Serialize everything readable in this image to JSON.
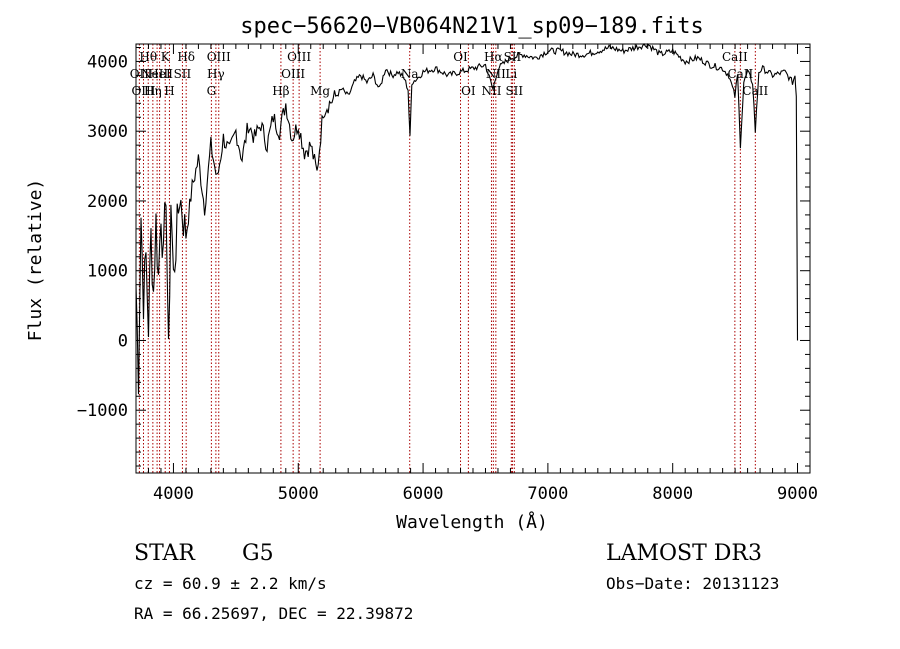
{
  "chart_data": {
    "type": "line",
    "title": "spec−56620−VB064N21V1_sp09−189.fits",
    "xlabel": "Wavelength (Å)",
    "ylabel": "Flux (relative)",
    "xlim": [
      3700,
      9100
    ],
    "ylim": [
      -1900,
      4250
    ],
    "x_ticks": [
      4000,
      5000,
      6000,
      7000,
      8000,
      9000
    ],
    "x_tick_labels": [
      "4000",
      "5000",
      "6000",
      "7000",
      "8000",
      "9000"
    ],
    "y_ticks": [
      -1000,
      0,
      1000,
      2000,
      3000,
      4000
    ],
    "y_tick_labels": [
      "−1000",
      "0",
      "1000",
      "2000",
      "3000",
      "4000"
    ],
    "grid": false,
    "line_color": "#000000",
    "marker_color": "#aa0000",
    "series": [
      {
        "name": "spectrum",
        "x": [
          3700,
          3720,
          3740,
          3760,
          3780,
          3800,
          3820,
          3840,
          3860,
          3880,
          3900,
          3920,
          3940,
          3960,
          3980,
          4000,
          4050,
          4100,
          4150,
          4200,
          4250,
          4300,
          4350,
          4400,
          4450,
          4500,
          4550,
          4600,
          4650,
          4700,
          4750,
          4800,
          4850,
          4900,
          4950,
          5000,
          5050,
          5100,
          5150,
          5200,
          5250,
          5300,
          5350,
          5400,
          5450,
          5500,
          5550,
          5600,
          5650,
          5700,
          5750,
          5800,
          5850,
          5880,
          5895,
          5910,
          5950,
          6000,
          6100,
          6200,
          6300,
          6400,
          6500,
          6560,
          6600,
          6700,
          6800,
          6900,
          7000,
          7100,
          7200,
          7300,
          7400,
          7500,
          7600,
          7700,
          7800,
          7900,
          8000,
          8100,
          8200,
          8300,
          8400,
          8450,
          8498,
          8520,
          8542,
          8570,
          8600,
          8640,
          8662,
          8690,
          8720,
          8800,
          8900,
          8960,
          8980,
          8990,
          9000
        ],
        "y": [
          800,
          -500,
          1800,
          600,
          1200,
          200,
          1500,
          700,
          1700,
          900,
          1900,
          1100,
          2200,
          -300,
          2000,
          900,
          2100,
          1500,
          2200,
          2600,
          1900,
          2800,
          2300,
          2900,
          2700,
          3000,
          2600,
          3100,
          2900,
          3100,
          2800,
          3200,
          3000,
          3400,
          2900,
          3100,
          2700,
          2800,
          2400,
          3300,
          3400,
          3500,
          3600,
          3500,
          3700,
          3800,
          3700,
          3800,
          3600,
          3900,
          3800,
          3850,
          3750,
          3600,
          2900,
          3700,
          3750,
          3850,
          3900,
          3800,
          3850,
          3900,
          3950,
          3600,
          3900,
          4050,
          4100,
          4050,
          4150,
          4150,
          4100,
          4100,
          4150,
          4200,
          4150,
          4200,
          4250,
          4100,
          4150,
          4000,
          4050,
          3950,
          3900,
          3800,
          3500,
          3800,
          2800,
          3700,
          3850,
          3700,
          3000,
          3850,
          3900,
          3800,
          3850,
          3700,
          3800,
          3500,
          0
        ]
      }
    ],
    "line_markers": [
      {
        "wavelength": 3727,
        "label": "OII",
        "row": 2
      },
      {
        "wavelength": 3760,
        "label": "OIII",
        "row": 3
      },
      {
        "wavelength": 3798,
        "label": "Hθ",
        "row": 1
      },
      {
        "wavelength": 3835,
        "label": "Hη",
        "row": 3
      },
      {
        "wavelength": 3869,
        "label": "NeIII",
        "row": 2
      },
      {
        "wavelength": 3889,
        "label": "HeI",
        "row": 2
      },
      {
        "wavelength": 3934,
        "label": "K",
        "row": 1
      },
      {
        "wavelength": 3968,
        "label": "H",
        "row": 3
      },
      {
        "wavelength": 4072,
        "label": "SII",
        "row": 2
      },
      {
        "wavelength": 4102,
        "label": "Hδ",
        "row": 1
      },
      {
        "wavelength": 4304,
        "label": "G",
        "row": 3
      },
      {
        "wavelength": 4340,
        "label": "Hγ",
        "row": 2
      },
      {
        "wavelength": 4363,
        "label": "OIII",
        "row": 1
      },
      {
        "wavelength": 4861,
        "label": "Hβ",
        "row": 3
      },
      {
        "wavelength": 4959,
        "label": "OIII",
        "row": 2
      },
      {
        "wavelength": 5007,
        "label": "OIII",
        "row": 1
      },
      {
        "wavelength": 5175,
        "label": "Mg",
        "row": 3
      },
      {
        "wavelength": 5893,
        "label": "Na",
        "row": 2
      },
      {
        "wavelength": 6300,
        "label": "OI",
        "row": 1
      },
      {
        "wavelength": 6363,
        "label": "OI",
        "row": 3
      },
      {
        "wavelength": 6548,
        "label": "NII",
        "row": 3
      },
      {
        "wavelength": 6563,
        "label": "Hα",
        "row": 1
      },
      {
        "wavelength": 6583,
        "label": "NII",
        "row": 2
      },
      {
        "wavelength": 6707,
        "label": "Li",
        "row": 2
      },
      {
        "wavelength": 6716,
        "label": "SII",
        "row": 1
      },
      {
        "wavelength": 6731,
        "label": "SII",
        "row": 3
      },
      {
        "wavelength": 8498,
        "label": "CaII",
        "row": 1
      },
      {
        "wavelength": 8542,
        "label": "CaII",
        "row": 2
      },
      {
        "wavelength": 8662,
        "label": "CaII",
        "row": 3
      }
    ]
  },
  "info": {
    "object_type": "STAR",
    "subclass": "G5",
    "survey": "LAMOST DR3",
    "cz": "cz = 60.9 ± 2.2 km/s",
    "obs_date": "Obs−Date: 20131123",
    "coords": "RA =  66.25697, DEC =  22.39872"
  }
}
